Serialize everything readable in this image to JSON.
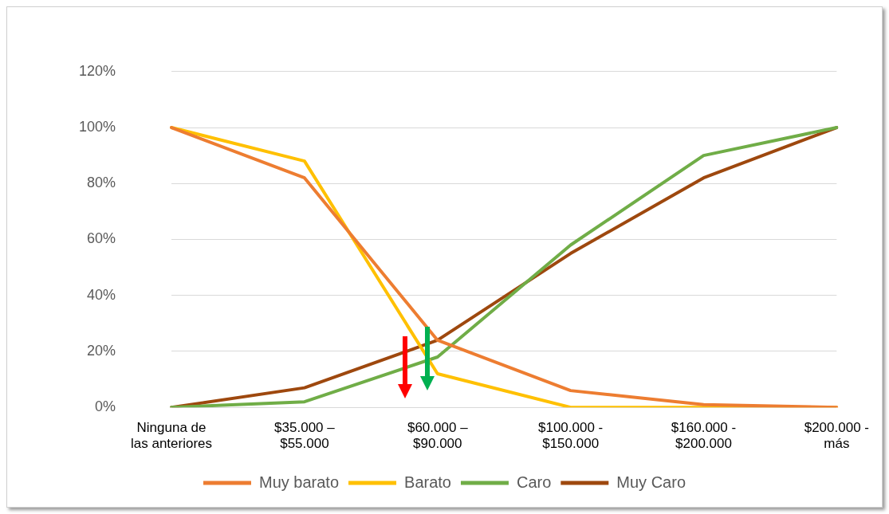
{
  "chart_data": {
    "type": "line",
    "categories": [
      "Ninguna de las anteriores",
      "$35.000 – $55.000",
      "$60.000 – $90.000",
      "$100.000 - $150.000",
      "$160.000 - $200.000",
      "$200.000 - más"
    ],
    "series": [
      {
        "name": "Muy barato",
        "color": "#ed7d31",
        "values": [
          100,
          82,
          24,
          6,
          1,
          0
        ]
      },
      {
        "name": "Barato",
        "color": "#ffc000",
        "values": [
          100,
          88,
          12,
          0,
          0,
          0
        ]
      },
      {
        "name": "Caro",
        "color": "#70ad47",
        "values": [
          0,
          2,
          18,
          58,
          90,
          100
        ]
      },
      {
        "name": "Muy Caro",
        "color": "#9e480e",
        "values": [
          0,
          7,
          24,
          55,
          82,
          100
        ]
      }
    ],
    "ylim": [
      0,
      120
    ],
    "yticks": [
      {
        "value": 0,
        "label": "0%"
      },
      {
        "value": 20,
        "label": "20%"
      },
      {
        "value": 40,
        "label": "40%"
      },
      {
        "value": 60,
        "label": "60%"
      },
      {
        "value": 80,
        "label": "80%"
      },
      {
        "value": 100,
        "label": "100%"
      },
      {
        "value": 120,
        "label": "120%"
      }
    ],
    "grid": "y",
    "legend": "bottom",
    "marker": "none",
    "line_style": "solid"
  }
}
